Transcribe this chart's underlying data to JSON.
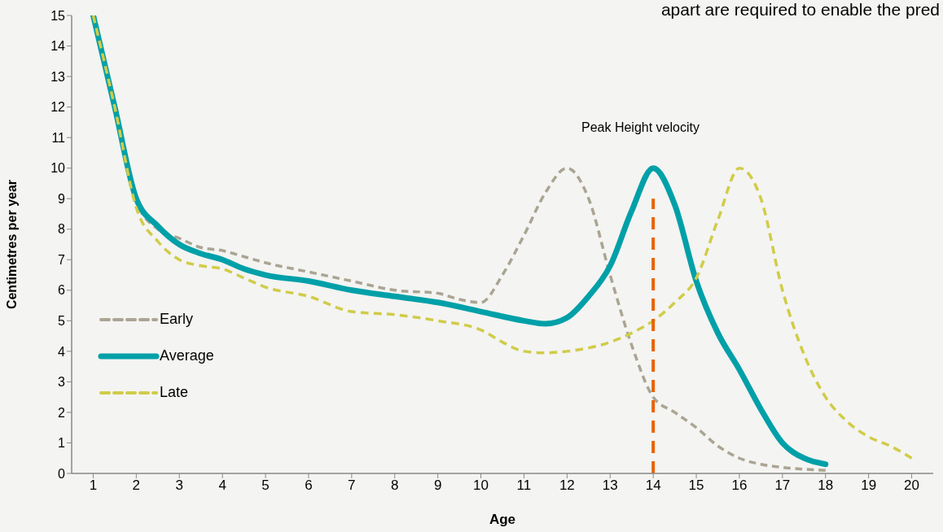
{
  "chart_data": {
    "type": "line",
    "xlabel": "Age",
    "ylabel": "Centimetres per year",
    "annotations": [
      "apart are required to enable the pred",
      "Peak Height velocity"
    ],
    "xlim": [
      0.5,
      20.5
    ],
    "xticks": [
      1,
      2,
      3,
      4,
      5,
      6,
      7,
      8,
      9,
      10,
      11,
      12,
      13,
      14,
      15,
      16,
      17,
      18,
      19,
      20
    ],
    "ylim": [
      0,
      15
    ],
    "yticks": [
      0,
      1,
      2,
      3,
      4,
      5,
      6,
      7,
      8,
      9,
      10,
      11,
      12,
      13,
      14,
      15
    ],
    "grid": false,
    "legend": "left",
    "marker": "none",
    "series": [
      {
        "name": "Early",
        "color": "#aaa593",
        "line_style": "dashed",
        "x": [
          1,
          1.5,
          2,
          2.5,
          3,
          3.5,
          4,
          4.5,
          5,
          6,
          7,
          8,
          9,
          9.5,
          10,
          10.5,
          11,
          11.5,
          12,
          12.5,
          13,
          13.5,
          14,
          14.5,
          15,
          15.5,
          16,
          16.5,
          17,
          18
        ],
        "values": [
          15,
          12,
          8.9,
          8.0,
          7.7,
          7.4,
          7.3,
          7.1,
          6.9,
          6.6,
          6.3,
          6.0,
          5.9,
          5.7,
          5.6,
          6.5,
          7.8,
          9.2,
          10,
          9,
          6.5,
          4.2,
          2.5,
          2.0,
          1.5,
          0.9,
          0.5,
          0.3,
          0.2,
          0.1
        ]
      },
      {
        "name": "Average",
        "color": "#00a0a8",
        "line_style": "solid",
        "x": [
          1,
          1.5,
          2,
          2.5,
          3,
          3.5,
          4,
          4.5,
          5,
          6,
          7,
          8,
          9,
          10,
          11,
          11.5,
          12,
          12.5,
          13,
          13.5,
          14,
          14.5,
          15,
          15.5,
          16,
          16.5,
          17,
          17.5,
          18
        ],
        "values": [
          15,
          12,
          9,
          8.1,
          7.5,
          7.2,
          7.0,
          6.7,
          6.5,
          6.3,
          6.0,
          5.8,
          5.6,
          5.3,
          5.0,
          4.9,
          5.1,
          5.8,
          6.8,
          8.6,
          10,
          8.8,
          6.3,
          4.6,
          3.4,
          2.1,
          1.0,
          0.5,
          0.3
        ]
      },
      {
        "name": "Late",
        "color": "#d0cc48",
        "line_style": "dashed",
        "x": [
          1,
          1.5,
          2,
          2.5,
          3,
          3.5,
          4,
          4.5,
          5,
          6,
          7,
          8,
          9,
          10,
          10.5,
          11,
          11.5,
          12,
          13,
          13.5,
          14,
          14.5,
          15,
          15.5,
          16,
          16.5,
          17,
          17.5,
          18,
          18.5,
          19,
          19.5,
          20
        ],
        "values": [
          15,
          12,
          8.7,
          7.6,
          7.0,
          6.8,
          6.7,
          6.4,
          6.1,
          5.8,
          5.3,
          5.2,
          5.0,
          4.7,
          4.3,
          4.0,
          3.95,
          4.0,
          4.3,
          4.6,
          5.0,
          5.6,
          6.4,
          8.3,
          10,
          9.0,
          6.0,
          3.9,
          2.5,
          1.7,
          1.2,
          0.9,
          0.5
        ]
      },
      {
        "color": "#e8630a",
        "line_style": "dashed",
        "x": [
          14,
          14
        ],
        "values": [
          0,
          9
        ]
      }
    ]
  }
}
